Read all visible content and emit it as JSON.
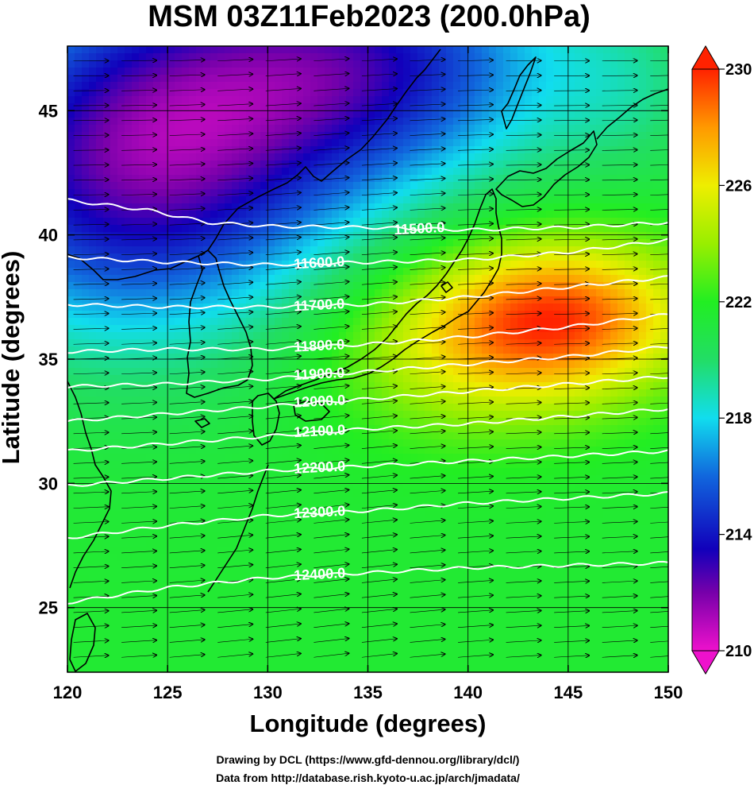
{
  "title": "MSM 03Z11Feb2023 (200.0hPa)",
  "xlabel": "Longitude (degrees)",
  "ylabel": "Latitude  (degrees)",
  "credits": [
    "Drawing by DCL (https://www.gfd-dennou.org/library/dcl/)",
    "Data from http://database.rish.kyoto-u.ac.jp/arch/jmadata/"
  ],
  "chart_data": {
    "type": "heatmap",
    "xlim": [
      120,
      150
    ],
    "ylim": [
      22.4,
      47.6
    ],
    "xticks": [
      "120",
      "125",
      "130",
      "135",
      "140",
      "145",
      "150"
    ],
    "yticks": [
      "25",
      "30",
      "35",
      "40",
      "45"
    ],
    "colorbar": {
      "min": 210,
      "max": 230,
      "ticks": [
        "210",
        "214",
        "218",
        "222",
        "226",
        "230"
      ],
      "stops": [
        {
          "v": 210,
          "color": "#ee11cc"
        },
        {
          "v": 212,
          "color": "#7700aa"
        },
        {
          "v": 213.5,
          "color": "#1100bb"
        },
        {
          "v": 216,
          "color": "#1166dd"
        },
        {
          "v": 218,
          "color": "#11ddee"
        },
        {
          "v": 220,
          "color": "#22dd66"
        },
        {
          "v": 222,
          "color": "#22ee22"
        },
        {
          "v": 224,
          "color": "#99ee00"
        },
        {
          "v": 226,
          "color": "#eeee00"
        },
        {
          "v": 228,
          "color": "#ff9900"
        },
        {
          "v": 230,
          "color": "#ff2200"
        }
      ]
    },
    "contours": [
      {
        "label": "11500.0",
        "label_lon": 136.3,
        "points": [
          [
            120,
            41.4
          ],
          [
            124,
            41.0
          ],
          [
            127,
            40.5
          ],
          [
            130,
            40.35
          ],
          [
            135,
            40.3
          ],
          [
            140,
            40.2
          ],
          [
            145,
            40.3
          ],
          [
            150,
            40.5
          ]
        ]
      },
      {
        "label": "11600.0",
        "label_lon": 131.3,
        "points": [
          [
            120,
            39.1
          ],
          [
            125,
            38.9
          ],
          [
            130,
            38.8
          ],
          [
            135,
            38.9
          ],
          [
            140,
            39.0
          ],
          [
            145,
            39.3
          ],
          [
            150,
            39.8
          ]
        ]
      },
      {
        "label": "11700.0",
        "label_lon": 131.3,
        "points": [
          [
            120,
            37.2
          ],
          [
            125,
            37.1
          ],
          [
            130,
            37.1
          ],
          [
            135,
            37.2
          ],
          [
            140,
            37.5
          ],
          [
            145,
            37.9
          ],
          [
            150,
            38.3
          ]
        ]
      },
      {
        "label": "11800.0",
        "label_lon": 131.3,
        "points": [
          [
            120,
            35.3
          ],
          [
            125,
            35.4
          ],
          [
            130,
            35.4
          ],
          [
            135,
            35.6
          ],
          [
            140,
            35.9
          ],
          [
            145,
            36.3
          ],
          [
            150,
            36.8
          ]
        ]
      },
      {
        "label": "11900.0",
        "label_lon": 131.3,
        "points": [
          [
            120,
            33.9
          ],
          [
            125,
            34.0
          ],
          [
            130,
            34.2
          ],
          [
            135,
            34.5
          ],
          [
            140,
            34.8
          ],
          [
            145,
            35.1
          ],
          [
            150,
            35.5
          ]
        ]
      },
      {
        "label": "12000.0",
        "label_lon": 131.3,
        "points": [
          [
            120,
            32.5
          ],
          [
            125,
            32.8
          ],
          [
            130,
            33.1
          ],
          [
            135,
            33.4
          ],
          [
            140,
            33.7
          ],
          [
            145,
            34.0
          ],
          [
            150,
            34.3
          ]
        ]
      },
      {
        "label": "12100.0",
        "label_lon": 131.3,
        "points": [
          [
            120,
            31.3
          ],
          [
            125,
            31.6
          ],
          [
            130,
            31.9
          ],
          [
            135,
            32.2
          ],
          [
            140,
            32.4
          ],
          [
            145,
            32.7
          ],
          [
            150,
            33.0
          ]
        ]
      },
      {
        "label": "12200.0",
        "label_lon": 131.3,
        "points": [
          [
            120,
            29.9
          ],
          [
            125,
            30.2
          ],
          [
            130,
            30.5
          ],
          [
            135,
            30.7
          ],
          [
            140,
            30.9
          ],
          [
            145,
            31.1
          ],
          [
            150,
            31.3
          ]
        ]
      },
      {
        "label": "12300.0",
        "label_lon": 131.3,
        "points": [
          [
            120,
            27.8
          ],
          [
            125,
            28.3
          ],
          [
            130,
            28.7
          ],
          [
            135,
            28.9
          ],
          [
            140,
            29.2
          ],
          [
            145,
            29.4
          ],
          [
            150,
            29.6
          ]
        ]
      },
      {
        "label": "12400.0",
        "label_lon": 131.3,
        "points": [
          [
            120,
            25.2
          ],
          [
            125,
            25.8
          ],
          [
            130,
            26.2
          ],
          [
            135,
            26.4
          ],
          [
            140,
            26.6
          ],
          [
            145,
            26.7
          ],
          [
            150,
            26.8
          ]
        ]
      }
    ],
    "temperature_field": {
      "background": 221.5,
      "anomalies": [
        {
          "lon": 123,
          "lat": 42.0,
          "amp": -7.5,
          "sx": 7.0,
          "sy": 4.5
        },
        {
          "lon": 130,
          "lat": 46.5,
          "amp": -5.5,
          "sx": 8.0,
          "sy": 4.0
        },
        {
          "lon": 137,
          "lat": 47.0,
          "amp": -3.5,
          "sx": 6.0,
          "sy": 3.0
        },
        {
          "lon": 145,
          "lat": 36.8,
          "amp": 6.5,
          "sx": 4.5,
          "sy": 2.2
        },
        {
          "lon": 140,
          "lat": 35.5,
          "amp": 3.5,
          "sx": 5.0,
          "sy": 2.5
        },
        {
          "lon": 148,
          "lat": 46.0,
          "amp": -1.5,
          "sx": 3.0,
          "sy": 2.5
        }
      ]
    }
  }
}
